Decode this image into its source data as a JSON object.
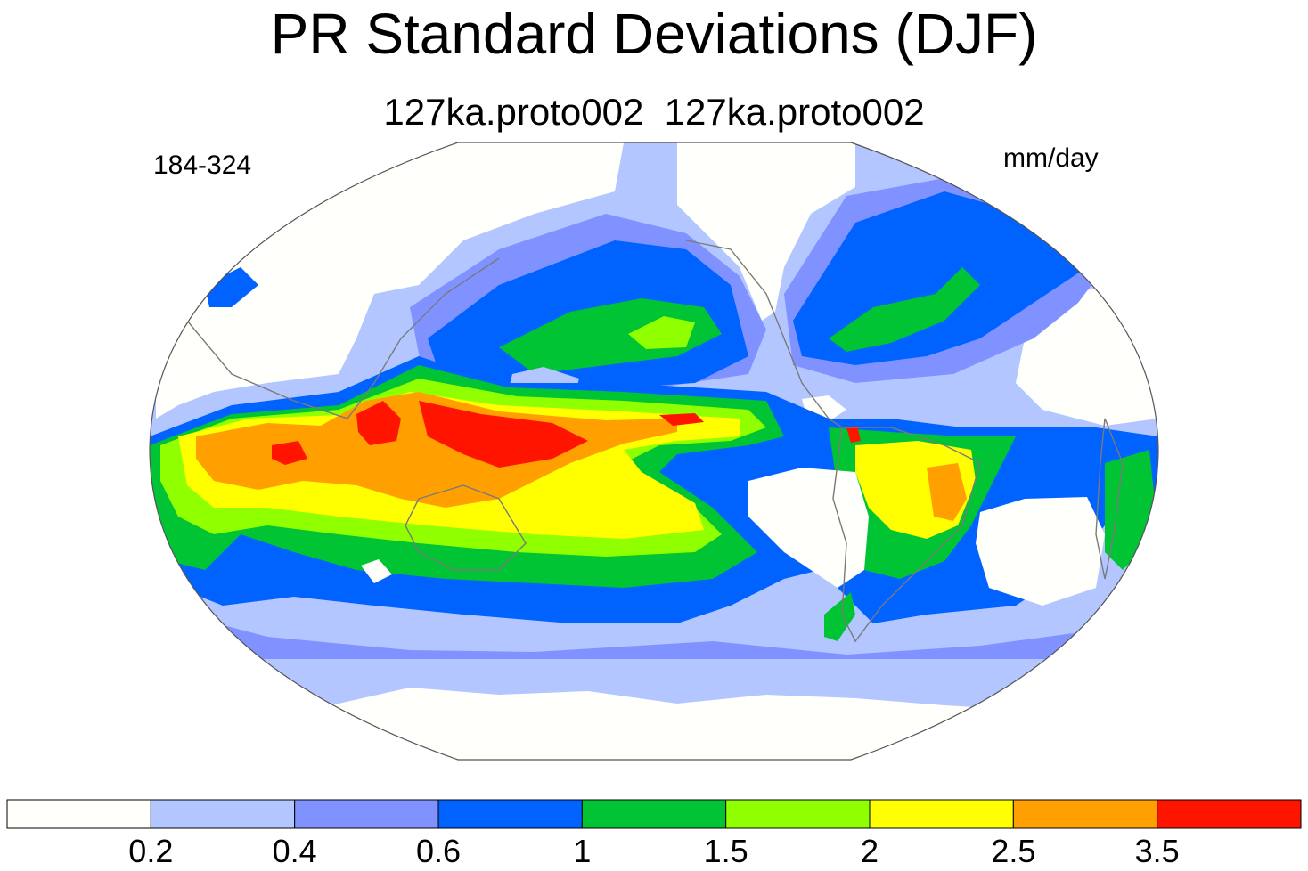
{
  "title": "PR Standard Deviations (DJF)",
  "subtitle": "127ka.proto002  127ka.proto002",
  "period_label": "184-324",
  "units_label": "mm/day",
  "projection": "robinson-like, Pacific-centered",
  "colorbar": {
    "colors": [
      "#fffffb",
      "#b3c6ff",
      "#8092ff",
      "#0062ff",
      "#00c433",
      "#90ff00",
      "#ffff00",
      "#ffa000",
      "#ff1400"
    ],
    "labels": [
      "0.2",
      "0.4",
      "0.6",
      "1",
      "1.5",
      "2",
      "2.5",
      "3.5"
    ]
  }
}
